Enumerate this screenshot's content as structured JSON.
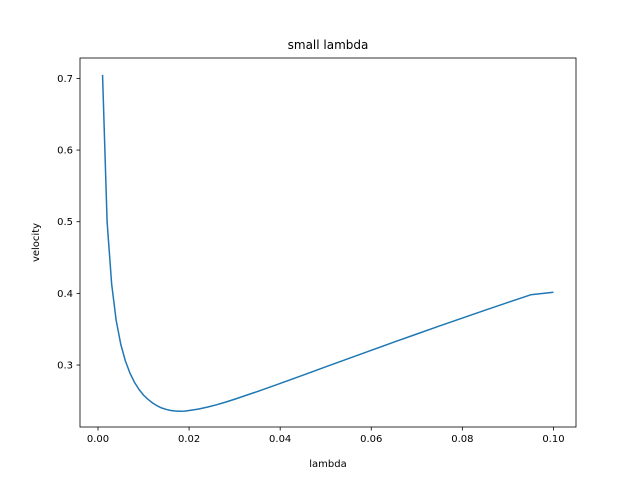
{
  "chart_data": {
    "type": "line",
    "title": "small lambda",
    "xlabel": "lambda",
    "ylabel": "velocity",
    "xlim": [
      -0.00395,
      0.10495
    ],
    "ylim": [
      0.2135,
      0.7285
    ],
    "x_ticks": [
      0.0,
      0.02,
      0.04,
      0.06,
      0.08,
      0.1
    ],
    "x_tick_labels": [
      "0.00",
      "0.02",
      "0.04",
      "0.06",
      "0.08",
      "0.10"
    ],
    "y_ticks": [
      0.3,
      0.4,
      0.5,
      0.6,
      0.7
    ],
    "y_tick_labels": [
      "0.3",
      "0.4",
      "0.5",
      "0.6",
      "0.7"
    ],
    "grid": false,
    "legend": "none",
    "series": [
      {
        "color": "#1f77b4",
        "x": [
          0.001,
          0.002,
          0.003,
          0.004,
          0.005,
          0.006,
          0.007,
          0.008,
          0.009,
          0.01,
          0.011,
          0.012,
          0.013,
          0.014,
          0.015,
          0.016,
          0.017,
          0.018,
          0.019,
          0.02,
          0.022,
          0.024,
          0.026,
          0.028,
          0.03,
          0.035,
          0.04,
          0.045,
          0.05,
          0.055,
          0.06,
          0.065,
          0.07,
          0.075,
          0.08,
          0.085,
          0.09,
          0.095,
          0.1
        ],
        "y": [
          0.705,
          0.5,
          0.413,
          0.362,
          0.329,
          0.306,
          0.289,
          0.276,
          0.266,
          0.258,
          0.252,
          0.247,
          0.243,
          0.24,
          0.238,
          0.2365,
          0.2358,
          0.2355,
          0.2357,
          0.2365,
          0.2385,
          0.2412,
          0.2445,
          0.2482,
          0.2522,
          0.263,
          0.2743,
          0.2858,
          0.2975,
          0.309,
          0.3205,
          0.332,
          0.3433,
          0.3545,
          0.3655,
          0.3765,
          0.3873,
          0.398,
          0.4015
        ]
      }
    ]
  }
}
